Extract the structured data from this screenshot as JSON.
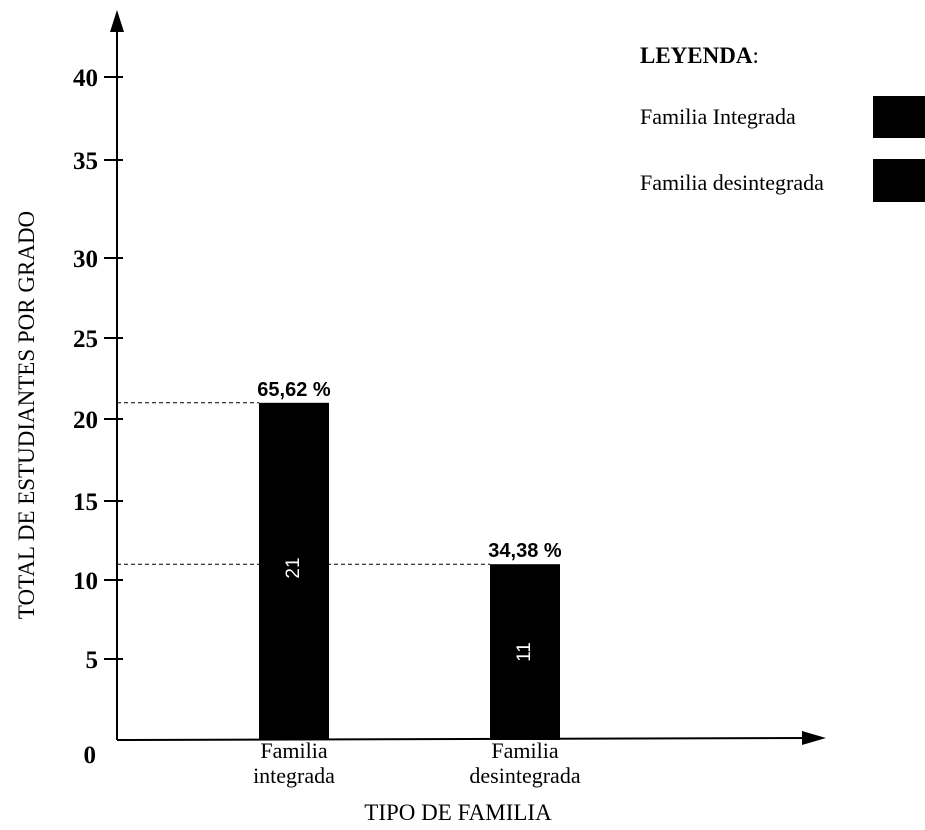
{
  "chart_data": {
    "type": "bar",
    "categories": [
      [
        "Familia",
        "integrada"
      ],
      [
        "Familia",
        "desintegrada"
      ]
    ],
    "values": [
      21,
      11
    ],
    "bar_labels": [
      "21",
      "11"
    ],
    "percent_labels": [
      "65,62 %",
      "34,38 %"
    ],
    "xlabel": "TIPO DE FAMILIA",
    "ylabel": "TOTAL DE ESTUDIANTES POR GRADO",
    "y_ticks": [
      0,
      5,
      10,
      15,
      20,
      25,
      30,
      35,
      40
    ],
    "ylim": [
      0,
      43
    ],
    "bar_color": "#000000",
    "reference_lines": [
      21,
      11
    ],
    "legend": {
      "title": "LEYENDA",
      "title_suffix": ":",
      "placement": "top-right",
      "items": [
        {
          "label": "Familia Integrada",
          "color": "#000000"
        },
        {
          "label": "Familia desintegrada",
          "color": "#000000"
        }
      ]
    }
  }
}
